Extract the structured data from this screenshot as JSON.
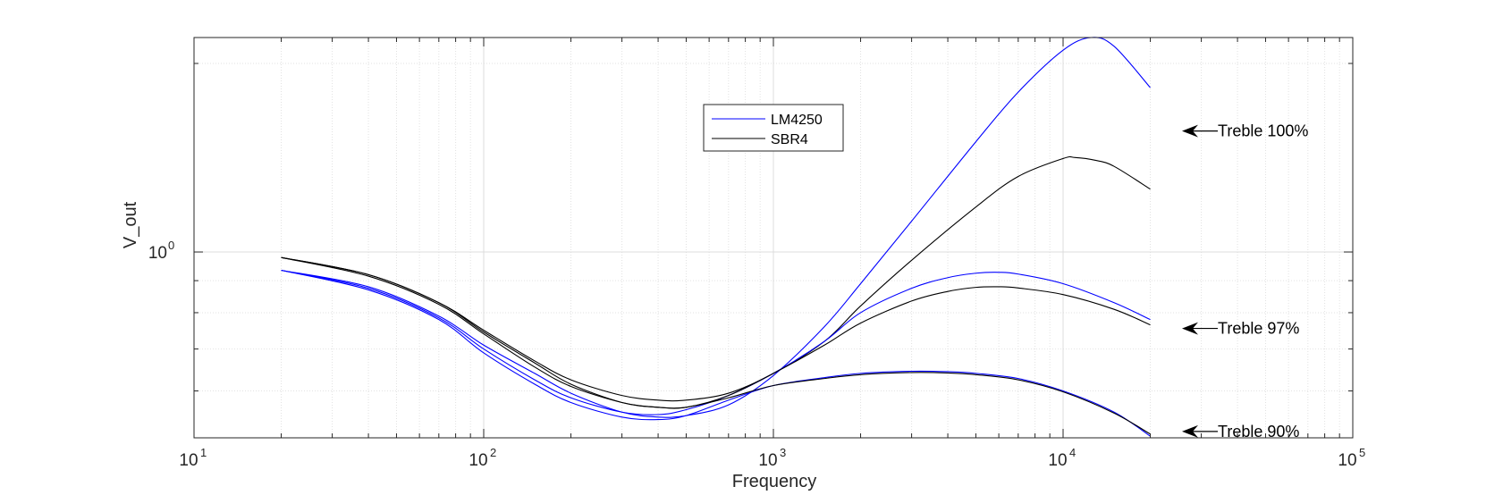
{
  "chart_data": {
    "type": "line",
    "xlabel": "Frequency",
    "ylabel": "V_out",
    "xscale": "log",
    "yscale": "log",
    "xlim": [
      10,
      100000
    ],
    "ylim": [
      0.505,
      2.2
    ],
    "x_ticks": [
      {
        "base": "10",
        "exp": "1"
      },
      {
        "base": "10",
        "exp": "2"
      },
      {
        "base": "10",
        "exp": "3"
      },
      {
        "base": "10",
        "exp": "4"
      },
      {
        "base": "10",
        "exp": "5"
      }
    ],
    "y_ticks": [
      {
        "base": "10",
        "exp": "0"
      }
    ],
    "grid": true,
    "legend": {
      "position": "top-center",
      "entries": [
        {
          "label": "LM4250",
          "color": "#0000ff"
        },
        {
          "label": "SBR4",
          "color": "#000000"
        }
      ]
    },
    "annotations": [
      {
        "text": "Treble 100%",
        "y": 1.56
      },
      {
        "text": "Treble 97%",
        "y": 0.755
      },
      {
        "text": "Treble 90%",
        "y": 0.517
      }
    ],
    "series": [
      {
        "group": "LM4250",
        "color": "#0000ff",
        "points": [
          [
            20,
            0.935
          ],
          [
            40,
            0.88
          ],
          [
            70,
            0.79
          ],
          [
            100,
            0.71
          ],
          [
            150,
            0.64
          ],
          [
            200,
            0.595
          ],
          [
            300,
            0.555
          ],
          [
            400,
            0.545
          ],
          [
            500,
            0.548
          ],
          [
            700,
            0.57
          ],
          [
            1000,
            0.635
          ],
          [
            1500,
            0.76
          ],
          [
            2000,
            0.89
          ],
          [
            3000,
            1.12
          ],
          [
            5000,
            1.5
          ],
          [
            7000,
            1.8
          ],
          [
            10000,
            2.1
          ],
          [
            12500,
            2.2
          ],
          [
            15000,
            2.13
          ],
          [
            20000,
            1.83
          ]
        ]
      },
      {
        "group": "SBR4",
        "color": "#000000",
        "points": [
          [
            20,
            0.98
          ],
          [
            40,
            0.92
          ],
          [
            70,
            0.83
          ],
          [
            100,
            0.75
          ],
          [
            150,
            0.67
          ],
          [
            200,
            0.625
          ],
          [
            300,
            0.59
          ],
          [
            400,
            0.58
          ],
          [
            500,
            0.58
          ],
          [
            700,
            0.595
          ],
          [
            1000,
            0.64
          ],
          [
            1500,
            0.72
          ],
          [
            2000,
            0.82
          ],
          [
            3000,
            0.97
          ],
          [
            5000,
            1.18
          ],
          [
            7000,
            1.32
          ],
          [
            10000,
            1.41
          ],
          [
            11000,
            1.415
          ],
          [
            13000,
            1.4
          ],
          [
            15000,
            1.37
          ],
          [
            20000,
            1.26
          ]
        ]
      },
      {
        "group": "LM4250",
        "color": "#0000ff",
        "points": [
          [
            20,
            0.935
          ],
          [
            40,
            0.875
          ],
          [
            70,
            0.785
          ],
          [
            100,
            0.7
          ],
          [
            150,
            0.625
          ],
          [
            200,
            0.585
          ],
          [
            300,
            0.555
          ],
          [
            400,
            0.55
          ],
          [
            500,
            0.56
          ],
          [
            700,
            0.59
          ],
          [
            1000,
            0.64
          ],
          [
            1500,
            0.72
          ],
          [
            2000,
            0.8
          ],
          [
            3000,
            0.875
          ],
          [
            4000,
            0.91
          ],
          [
            5000,
            0.925
          ],
          [
            6000,
            0.928
          ],
          [
            7000,
            0.922
          ],
          [
            10000,
            0.89
          ],
          [
            15000,
            0.83
          ],
          [
            20000,
            0.78
          ]
        ]
      },
      {
        "group": "SBR4",
        "color": "#000000",
        "points": [
          [
            20,
            0.98
          ],
          [
            40,
            0.92
          ],
          [
            70,
            0.83
          ],
          [
            100,
            0.745
          ],
          [
            150,
            0.665
          ],
          [
            200,
            0.615
          ],
          [
            300,
            0.575
          ],
          [
            400,
            0.565
          ],
          [
            500,
            0.565
          ],
          [
            700,
            0.59
          ],
          [
            1000,
            0.64
          ],
          [
            1500,
            0.71
          ],
          [
            2000,
            0.77
          ],
          [
            3000,
            0.835
          ],
          [
            4000,
            0.865
          ],
          [
            5000,
            0.878
          ],
          [
            6000,
            0.88
          ],
          [
            7000,
            0.876
          ],
          [
            10000,
            0.855
          ],
          [
            15000,
            0.81
          ],
          [
            20000,
            0.765
          ]
        ]
      },
      {
        "group": "LM4250",
        "color": "#0000ff",
        "points": [
          [
            20,
            0.935
          ],
          [
            40,
            0.87
          ],
          [
            70,
            0.78
          ],
          [
            100,
            0.69
          ],
          [
            150,
            0.615
          ],
          [
            200,
            0.575
          ],
          [
            300,
            0.545
          ],
          [
            400,
            0.54
          ],
          [
            500,
            0.548
          ],
          [
            700,
            0.58
          ],
          [
            1000,
            0.612
          ],
          [
            1500,
            0.63
          ],
          [
            2000,
            0.64
          ],
          [
            3000,
            0.645
          ],
          [
            4000,
            0.644
          ],
          [
            5000,
            0.64
          ],
          [
            7000,
            0.628
          ],
          [
            10000,
            0.6
          ],
          [
            15000,
            0.555
          ],
          [
            20000,
            0.508
          ]
        ]
      },
      {
        "group": "SBR4",
        "color": "#000000",
        "points": [
          [
            20,
            0.98
          ],
          [
            40,
            0.915
          ],
          [
            70,
            0.825
          ],
          [
            100,
            0.74
          ],
          [
            150,
            0.655
          ],
          [
            200,
            0.61
          ],
          [
            300,
            0.575
          ],
          [
            400,
            0.565
          ],
          [
            500,
            0.565
          ],
          [
            700,
            0.585
          ],
          [
            1000,
            0.612
          ],
          [
            1500,
            0.628
          ],
          [
            2000,
            0.637
          ],
          [
            3000,
            0.642
          ],
          [
            4000,
            0.641
          ],
          [
            5000,
            0.637
          ],
          [
            7000,
            0.625
          ],
          [
            10000,
            0.598
          ],
          [
            15000,
            0.553
          ],
          [
            20000,
            0.512
          ]
        ]
      }
    ]
  }
}
